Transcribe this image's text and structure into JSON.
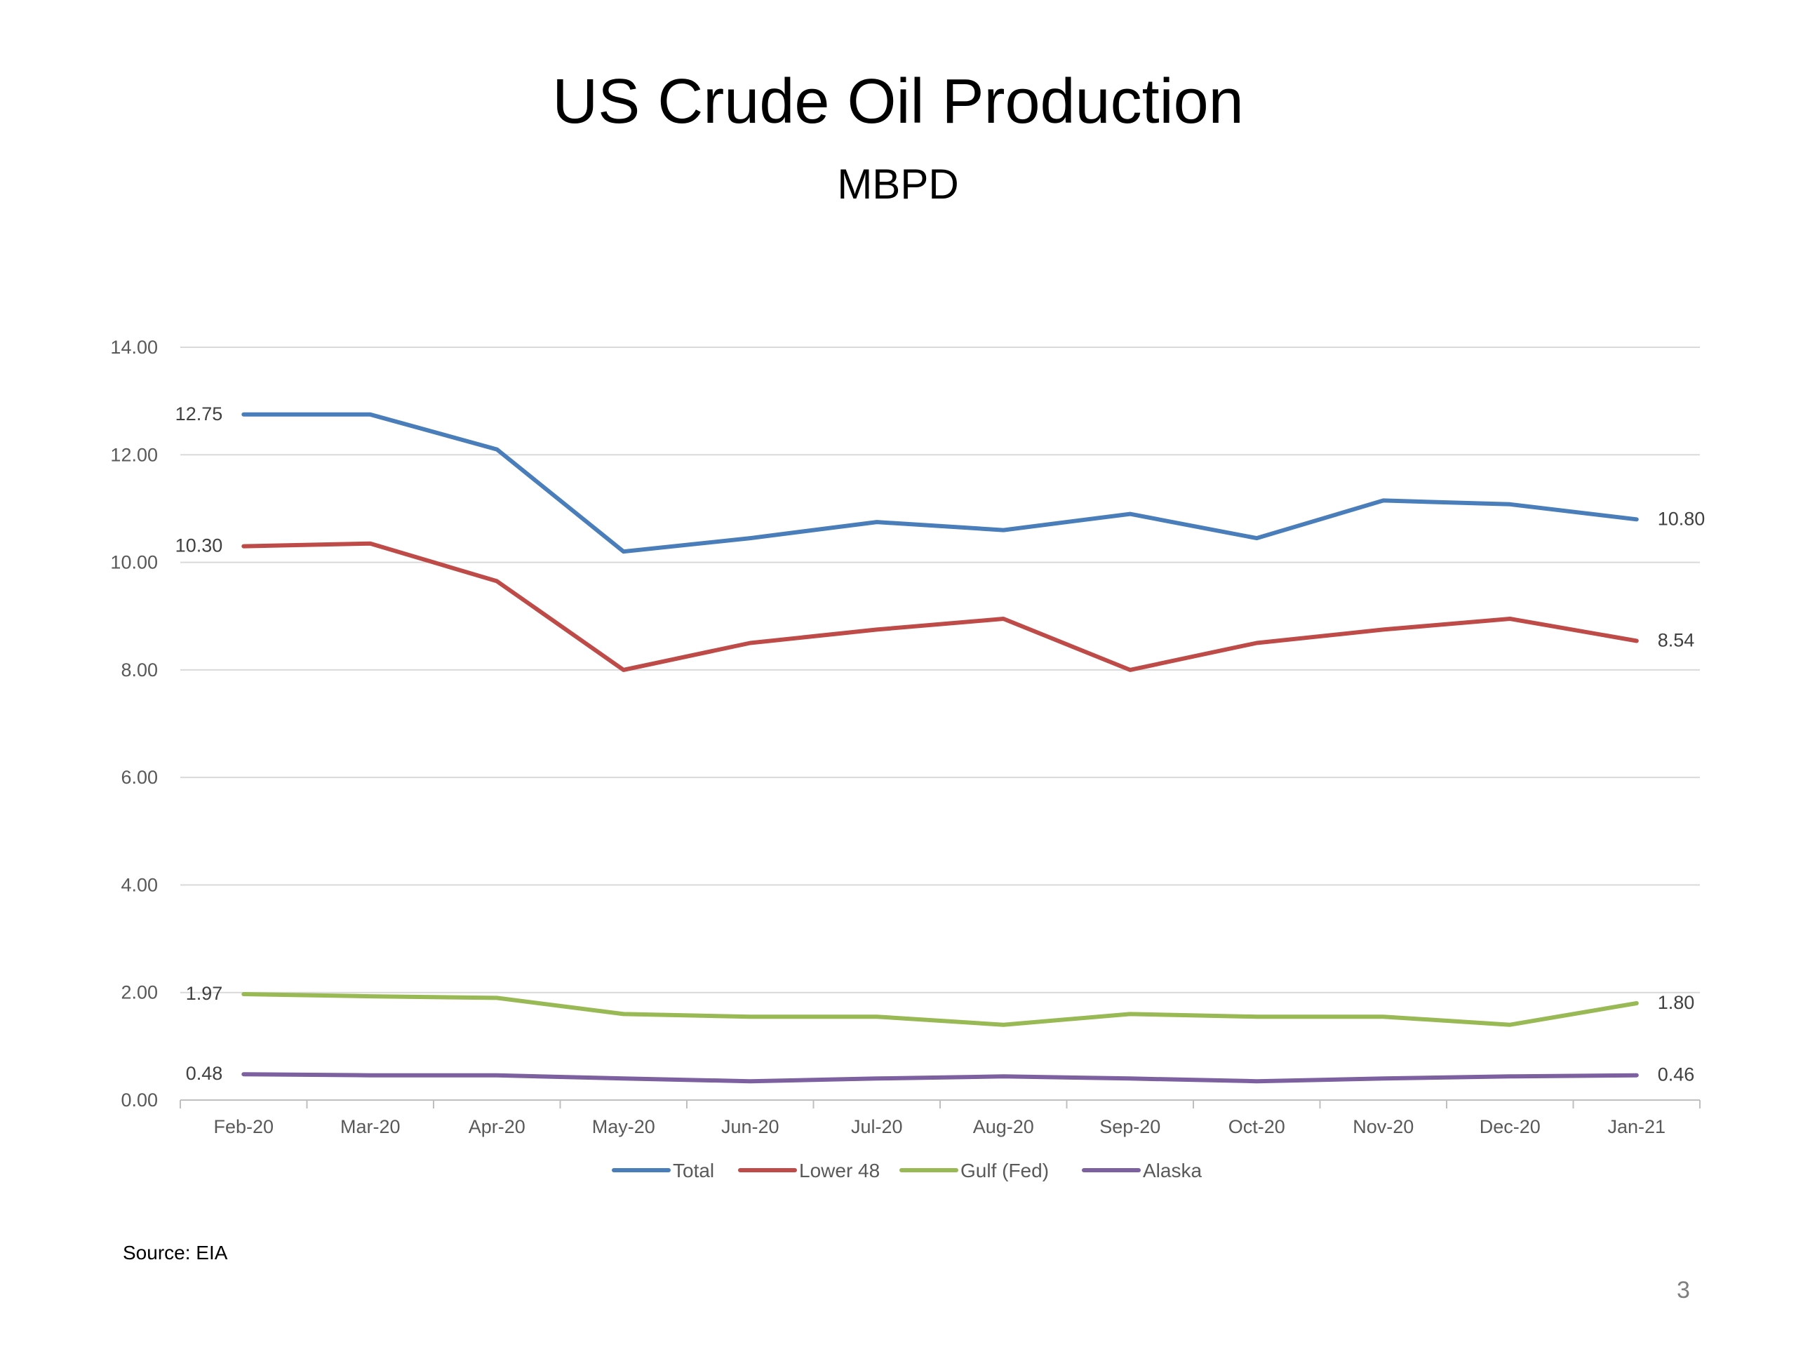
{
  "chart_data": {
    "type": "line",
    "title": "US Crude Oil Production",
    "subtitle": "MBPD",
    "categories": [
      "Feb-20",
      "Mar-20",
      "Apr-20",
      "May-20",
      "Jun-20",
      "Jul-20",
      "Aug-20",
      "Sep-20",
      "Oct-20",
      "Nov-20",
      "Dec-20",
      "Jan-21"
    ],
    "ylim": [
      0,
      14
    ],
    "yticks": [
      "0.00",
      "2.00",
      "4.00",
      "6.00",
      "8.00",
      "10.00",
      "12.00",
      "14.00"
    ],
    "grid": true,
    "legend_position": "bottom",
    "series": [
      {
        "name": "Total",
        "color": "#4a7ebb",
        "values": [
          12.75,
          12.75,
          12.1,
          10.2,
          10.45,
          10.75,
          10.6,
          10.9,
          10.45,
          11.15,
          11.08,
          10.8
        ],
        "labels": {
          "first": "12.75",
          "last": "10.80"
        }
      },
      {
        "name": "Lower 48",
        "color": "#be4b48",
        "values": [
          10.3,
          10.35,
          9.65,
          8.0,
          8.5,
          8.75,
          8.95,
          8.0,
          8.5,
          8.75,
          8.95,
          8.54
        ],
        "labels": {
          "first": "10.30",
          "last": "8.54"
        }
      },
      {
        "name": "Gulf (Fed)",
        "color": "#98b954",
        "values": [
          1.97,
          1.93,
          1.9,
          1.6,
          1.55,
          1.55,
          1.4,
          1.6,
          1.55,
          1.55,
          1.4,
          1.8
        ],
        "labels": {
          "first": "1.97",
          "last": "1.80"
        }
      },
      {
        "name": "Alaska",
        "color": "#7d60a0",
        "values": [
          0.48,
          0.46,
          0.46,
          0.4,
          0.35,
          0.4,
          0.44,
          0.4,
          0.35,
          0.4,
          0.44,
          0.46
        ],
        "labels": {
          "first": "0.48",
          "last": "0.46"
        }
      }
    ]
  },
  "footer": {
    "source": "Source: EIA",
    "page_number": "3"
  }
}
